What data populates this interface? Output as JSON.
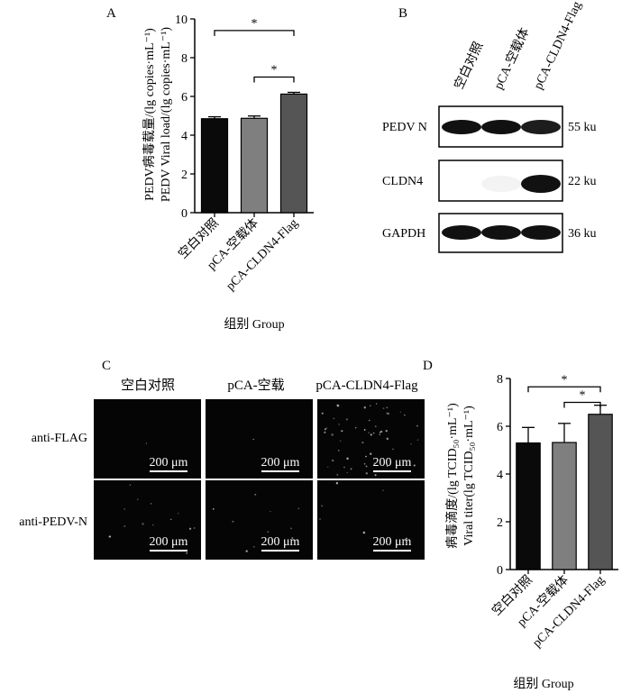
{
  "panel_labels": {
    "a": "A",
    "b": "B",
    "c": "C",
    "d": "D"
  },
  "colors": {
    "bar_control": "#0a0a0a",
    "bar_vector": "#7f7f7f",
    "bar_cldn4": "#555555",
    "blot_band": "#111111",
    "micro_bg": "#050505"
  },
  "chart_data": [
    {
      "panel": "A",
      "type": "bar",
      "categories": [
        "空白对照",
        "pCA-空载体",
        "pCA-CLDN4-Flag"
      ],
      "values": [
        4.85,
        4.87,
        6.12
      ],
      "errors": [
        0.1,
        0.12,
        0.09
      ],
      "ylim": [
        0,
        10
      ],
      "yticks": [
        0,
        2,
        4,
        6,
        8,
        10
      ],
      "ylabel_cn": "PEDV病毒载量/(lg copies·mL⁻¹)",
      "ylabel_en": "PEDV Viral load/(lg copies·mL⁻¹)",
      "xlabel": "组别 Group",
      "significance": [
        {
          "from": 0,
          "to": 2,
          "label": "*",
          "y": 9.4
        },
        {
          "from": 1,
          "to": 2,
          "label": "*",
          "y": 7.0
        }
      ]
    },
    {
      "panel": "D",
      "type": "bar",
      "categories": [
        "空白对照",
        "pCA-空载体",
        "pCA-CLDN4-Flag"
      ],
      "values": [
        5.3,
        5.32,
        6.5
      ],
      "errors": [
        0.65,
        0.8,
        0.38
      ],
      "ylim": [
        0,
        8
      ],
      "yticks": [
        0,
        2,
        4,
        6,
        8
      ],
      "ylabel_cn": "病毒滴度/(lg TCID₅₀·mL⁻¹)",
      "ylabel_en": "Viral titer(lg TCID₅₀·mL⁻¹)",
      "xlabel": "组别 Group",
      "significance": [
        {
          "from": 0,
          "to": 2,
          "label": "*",
          "y": 7.65
        },
        {
          "from": 1,
          "to": 2,
          "label": "*",
          "y": 7.0
        }
      ]
    }
  ],
  "western_blot": {
    "lanes": [
      "空白对照",
      "pCA-空载体",
      "pCA-CLDN4-Flag"
    ],
    "rows": [
      {
        "label": "PEDV N",
        "size": "55 ku",
        "intensity": [
          1.0,
          1.0,
          0.95
        ]
      },
      {
        "label": "CLDN4",
        "size": "22 ku",
        "intensity": [
          0.0,
          0.05,
          1.0
        ]
      },
      {
        "label": "GAPDH",
        "size": "36 ku",
        "intensity": [
          1.0,
          1.0,
          1.0
        ]
      }
    ]
  },
  "microscopy": {
    "columns": [
      "空白对照",
      "pCA-空载",
      "pCA-CLDN4-Flag"
    ],
    "rows": [
      "anti-FLAG",
      "anti-PEDV-N"
    ],
    "scale_bar": "200 μm"
  }
}
